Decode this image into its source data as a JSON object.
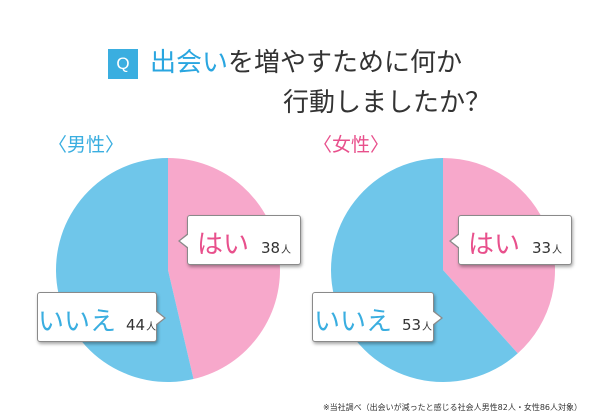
{
  "title": {
    "badge": "Q",
    "highlight": "出会い",
    "line1_rest": "を増やすために何か",
    "line2": "行動しましたか？"
  },
  "footnote": "※当社調べ（出会いが減ったと感じる社会人男性82人・女性86人対象）",
  "colors": {
    "pink": "#f7a8cb",
    "blue": "#6fc6ea",
    "pink_text": "#e8508c",
    "blue_text": "#3aaee0"
  },
  "chart_data": [
    {
      "type": "pie",
      "group_label": "〈男性〉",
      "slices": [
        {
          "label": "はい",
          "value": 38,
          "unit": "人",
          "color": "#f7a8cb"
        },
        {
          "label": "いいえ",
          "value": 44,
          "unit": "人",
          "color": "#6fc6ea"
        }
      ]
    },
    {
      "type": "pie",
      "group_label": "〈女性〉",
      "slices": [
        {
          "label": "はい",
          "value": 33,
          "unit": "人",
          "color": "#f7a8cb"
        },
        {
          "label": "いいえ",
          "value": 53,
          "unit": "人",
          "color": "#6fc6ea"
        }
      ]
    }
  ]
}
